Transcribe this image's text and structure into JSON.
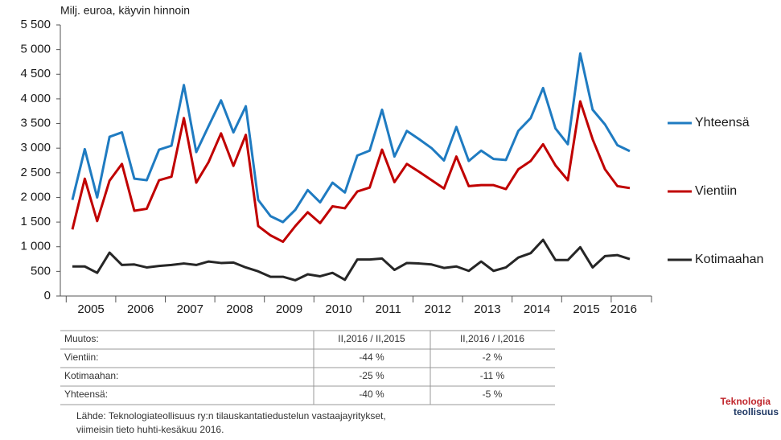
{
  "chart_data": {
    "type": "line",
    "ylabel": "Milj. euroa, käyvin hinnoin",
    "categories": [
      "2005",
      null,
      null,
      null,
      "2006",
      null,
      null,
      null,
      "2007",
      null,
      null,
      null,
      "2008",
      null,
      null,
      null,
      "2009",
      null,
      null,
      null,
      "2010",
      null,
      null,
      null,
      "2011",
      null,
      null,
      null,
      "2012",
      null,
      null,
      null,
      "2013",
      null,
      null,
      null,
      "2014",
      null,
      null,
      null,
      "2015",
      null,
      null,
      null,
      "2016",
      null
    ],
    "ylim": [
      0,
      5500
    ],
    "yticks": [
      0,
      500,
      {
        "value": 1000,
        "label": "1 000"
      },
      {
        "value": 1500,
        "label": "1 500"
      },
      {
        "value": 2000,
        "label": "2 000"
      },
      {
        "value": 2500,
        "label": "2 500"
      },
      {
        "value": 3000,
        "label": "3 000"
      },
      {
        "value": 3500,
        "label": "3 500"
      },
      {
        "value": 4000,
        "label": "4 000"
      },
      {
        "value": 4500,
        "label": "4 500"
      },
      {
        "value": 5000,
        "label": "5 000"
      },
      {
        "value": 5500,
        "label": "5 500"
      }
    ],
    "grid": false,
    "series": [
      {
        "name": "Yhteensä",
        "color": "#1f7bc1",
        "values": [
          1950,
          2980,
          2000,
          3230,
          3320,
          2380,
          2350,
          2970,
          3050,
          4280,
          2920,
          3450,
          3970,
          3320,
          3850,
          1950,
          1620,
          1500,
          1750,
          2150,
          1900,
          2300,
          2100,
          2850,
          2950,
          3780,
          2830,
          3350,
          3180,
          3000,
          2750,
          3430,
          2740,
          2950,
          2780,
          2760,
          3350,
          3610,
          4220,
          3400,
          3080,
          4920,
          3780,
          3480,
          3060,
          2940
        ]
      },
      {
        "name": "Vientiin",
        "color": "#c00000",
        "values": [
          1350,
          2380,
          1520,
          2340,
          2680,
          1730,
          1770,
          2350,
          2420,
          3610,
          2300,
          2720,
          3300,
          2640,
          3270,
          1420,
          1230,
          1100,
          1420,
          1700,
          1480,
          1820,
          1780,
          2120,
          2200,
          2970,
          2310,
          2680,
          2520,
          2350,
          2180,
          2830,
          2230,
          2250,
          2250,
          2170,
          2570,
          2740,
          3080,
          2650,
          2350,
          3950,
          3180,
          2570,
          2230,
          2190
        ]
      },
      {
        "name": "Kotimaahan",
        "color": "#262626",
        "values": [
          600,
          600,
          470,
          880,
          630,
          640,
          580,
          610,
          630,
          660,
          630,
          700,
          670,
          680,
          580,
          500,
          390,
          390,
          320,
          440,
          400,
          470,
          330,
          740,
          740,
          760,
          530,
          670,
          660,
          640,
          570,
          600,
          510,
          700,
          510,
          580,
          780,
          870,
          1140,
          730,
          730,
          990,
          580,
          810,
          830,
          750
        ]
      }
    ]
  },
  "table": {
    "header": [
      "Muutos:",
      "II,2016  / II,2015",
      "II,2016  / I,2016"
    ],
    "rows": [
      [
        "Vientiin:",
        "-44 %",
        "-2 %"
      ],
      [
        "Kotimaahan:",
        "-25 %",
        "-11 %"
      ],
      [
        "Yhteensä:",
        "-40 %",
        "-5 %"
      ]
    ]
  },
  "source": [
    "Lähde: Teknologiateollisuus ry:n tilauskantatiedustelun  vastaajayritykset,",
    "viimeisin tieto huhti-kesäkuu 2016."
  ],
  "logo": [
    "Teknologia",
    "teollisuus"
  ]
}
